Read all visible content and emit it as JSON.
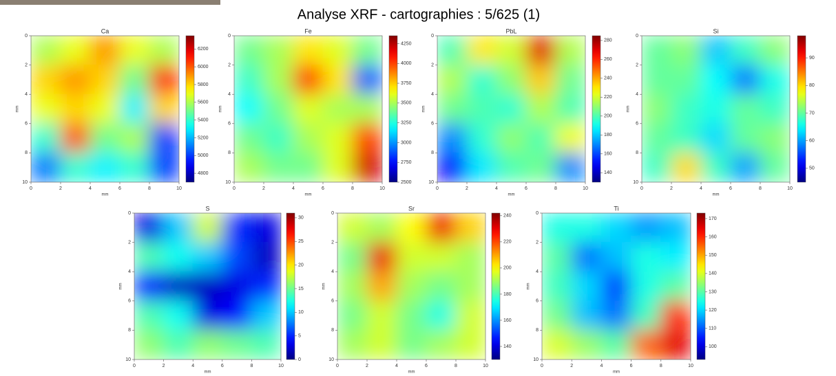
{
  "page_title": "Analyse XRF - cartographies : 5/625 (1)",
  "chart_data": [
    {
      "type": "heatmap",
      "title": "Ca",
      "xlabel": "mm",
      "ylabel": "mm",
      "xlim": [
        0,
        10
      ],
      "ylim": [
        0,
        10
      ],
      "y_inverted": true,
      "xticks": [
        0,
        2,
        4,
        6,
        8,
        10
      ],
      "yticks": [
        0,
        2,
        4,
        6,
        8,
        10
      ],
      "colormap": "jet",
      "clim": [
        4700,
        6350
      ],
      "cticks": [
        4800,
        5000,
        5200,
        5400,
        5600,
        5800,
        6000,
        6200
      ],
      "values": [
        [
          5600,
          5700,
          5900,
          5700,
          5600
        ],
        [
          5800,
          5900,
          5800,
          5500,
          6100
        ],
        [
          5700,
          5800,
          5700,
          5300,
          5800
        ],
        [
          5400,
          6000,
          5500,
          5600,
          5000
        ],
        [
          5100,
          5400,
          5300,
          5400,
          5000
        ]
      ]
    },
    {
      "type": "heatmap",
      "title": "Fe",
      "xlabel": "mm",
      "ylabel": "mm",
      "xlim": [
        0,
        10
      ],
      "ylim": [
        0,
        10
      ],
      "y_inverted": true,
      "xticks": [
        0,
        2,
        4,
        6,
        8,
        10
      ],
      "yticks": [
        0,
        2,
        4,
        6,
        8,
        10
      ],
      "colormap": "jet",
      "clim": [
        2500,
        4350
      ],
      "cticks": [
        2500,
        2750,
        3000,
        3250,
        3500,
        3750,
        4000,
        4250
      ],
      "values": [
        [
          3400,
          3500,
          3700,
          3600,
          3400
        ],
        [
          3300,
          3500,
          4000,
          3700,
          2900
        ],
        [
          3200,
          3400,
          3600,
          3500,
          3500
        ],
        [
          3400,
          3300,
          3500,
          3600,
          4000
        ],
        [
          3500,
          3400,
          3400,
          3600,
          4200
        ]
      ]
    },
    {
      "type": "heatmap",
      "title": "PbL",
      "xlabel": "mm",
      "ylabel": "mm",
      "xlim": [
        0,
        10
      ],
      "ylim": [
        0,
        10
      ],
      "y_inverted": true,
      "xticks": [
        0,
        2,
        4,
        6,
        8,
        10
      ],
      "yticks": [
        0,
        2,
        4,
        6,
        8,
        10
      ],
      "colormap": "jet",
      "clim": [
        130,
        285
      ],
      "cticks": [
        140,
        160,
        180,
        200,
        220,
        240,
        260,
        280
      ],
      "values": [
        [
          200,
          230,
          220,
          270,
          215
        ],
        [
          215,
          195,
          210,
          235,
          205
        ],
        [
          205,
          200,
          195,
          215,
          200
        ],
        [
          170,
          195,
          210,
          200,
          225
        ],
        [
          150,
          185,
          200,
          205,
          170
        ]
      ]
    },
    {
      "type": "heatmap",
      "title": "Si",
      "xlabel": "mm",
      "ylabel": "mm",
      "xlim": [
        0,
        10
      ],
      "ylim": [
        0,
        10
      ],
      "y_inverted": true,
      "xticks": [
        0,
        2,
        4,
        6,
        8,
        10
      ],
      "yticks": [
        0,
        2,
        4,
        6,
        8,
        10
      ],
      "colormap": "jet",
      "clim": [
        45,
        98
      ],
      "cticks": [
        50,
        60,
        70,
        80,
        90
      ],
      "values": [
        [
          70,
          72,
          62,
          68,
          72
        ],
        [
          70,
          70,
          65,
          58,
          66
        ],
        [
          72,
          68,
          66,
          70,
          68
        ],
        [
          70,
          68,
          63,
          70,
          72
        ],
        [
          68,
          80,
          68,
          60,
          70
        ]
      ]
    },
    {
      "type": "heatmap",
      "title": "S",
      "xlabel": "mm",
      "ylabel": "mm",
      "xlim": [
        0,
        10
      ],
      "ylim": [
        0,
        10
      ],
      "y_inverted": true,
      "xticks": [
        0,
        2,
        4,
        6,
        8,
        10
      ],
      "yticks": [
        0,
        2,
        4,
        6,
        8,
        10
      ],
      "colormap": "jet",
      "clim": [
        0,
        31
      ],
      "cticks": [
        0,
        5,
        10,
        15,
        20,
        25,
        30
      ],
      "values": [
        [
          3,
          10,
          18,
          5,
          3
        ],
        [
          14,
          12,
          10,
          6,
          2
        ],
        [
          4,
          2,
          2,
          3,
          5
        ],
        [
          14,
          12,
          3,
          4,
          10
        ],
        [
          16,
          14,
          16,
          15,
          14
        ]
      ]
    },
    {
      "type": "heatmap",
      "title": "Sr",
      "xlabel": "mm",
      "ylabel": "mm",
      "xlim": [
        0,
        10
      ],
      "ylim": [
        0,
        10
      ],
      "y_inverted": true,
      "xticks": [
        0,
        2,
        4,
        6,
        8,
        10
      ],
      "yticks": [
        0,
        2,
        4,
        6,
        8,
        10
      ],
      "colormap": "jet",
      "clim": [
        130,
        242
      ],
      "cticks": [
        140,
        160,
        180,
        200,
        220,
        240
      ],
      "values": [
        [
          195,
          190,
          200,
          230,
          205
        ],
        [
          185,
          230,
          195,
          195,
          190
        ],
        [
          190,
          210,
          190,
          185,
          190
        ],
        [
          185,
          195,
          185,
          175,
          195
        ],
        [
          190,
          195,
          185,
          190,
          195
        ]
      ]
    },
    {
      "type": "heatmap",
      "title": "Ti",
      "xlabel": "mm",
      "ylabel": "mm",
      "xlim": [
        0,
        10
      ],
      "ylim": [
        0,
        10
      ],
      "y_inverted": true,
      "xticks": [
        0,
        2,
        4,
        6,
        8,
        10
      ],
      "yticks": [
        0,
        2,
        4,
        6,
        8,
        10
      ],
      "colormap": "jet",
      "clim": [
        93,
        173
      ],
      "cticks": [
        100,
        110,
        120,
        130,
        140,
        150,
        160,
        170
      ],
      "values": [
        [
          125,
          125,
          120,
          115,
          118
        ],
        [
          130,
          112,
          118,
          125,
          122
        ],
        [
          128,
          120,
          108,
          125,
          130
        ],
        [
          132,
          118,
          112,
          128,
          160
        ],
        [
          140,
          135,
          130,
          155,
          165
        ]
      ]
    }
  ]
}
